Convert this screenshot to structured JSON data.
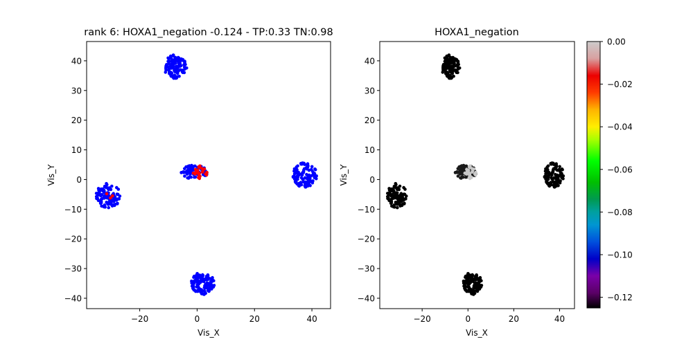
{
  "chart_data": [
    {
      "type": "scatter",
      "title": "rank 6: HOXA1_negation -0.124 - TP:0.33 TN:0.98",
      "xlabel": "Vis_X",
      "ylabel": "Vis_Y",
      "xlim": [
        -38.5,
        46.5
      ],
      "ylim": [
        -43.5,
        46.5
      ],
      "xticks": [
        -20,
        0,
        20,
        40
      ],
      "yticks": [
        -40,
        -30,
        -20,
        -10,
        0,
        10,
        20,
        30,
        40
      ],
      "clusters": [
        {
          "center": [
            -7.5,
            38
          ],
          "radius": [
            4.2,
            4.0
          ],
          "count": 110,
          "color": "#0000ff"
        },
        {
          "center": [
            -31,
            -5.5
          ],
          "radius": [
            4.2,
            4.2
          ],
          "count": 110,
          "color": "#0000ff"
        },
        {
          "center": [
            37.5,
            1.5
          ],
          "radius": [
            4.2,
            4.2
          ],
          "count": 110,
          "color": "#0000ff"
        },
        {
          "center": [
            2,
            -35
          ],
          "radius": [
            4.2,
            3.8
          ],
          "count": 110,
          "color": "#0000ff"
        },
        {
          "center": [
            -1,
            2.5
          ],
          "radius": [
            4.6,
            2.4
          ],
          "count": 70,
          "color": "#0000ff",
          "highlight_count": 28,
          "highlight_color": "#ff0000"
        }
      ]
    },
    {
      "type": "scatter",
      "title": "HOXA1_negation",
      "xlabel": "Vis_X",
      "ylabel": "Vis_Y",
      "xlim": [
        -38.5,
        46.5
      ],
      "ylim": [
        -43.5,
        46.5
      ],
      "xticks": [
        -20,
        0,
        20,
        40
      ],
      "yticks": [
        -40,
        -30,
        -20,
        -10,
        0,
        10,
        20,
        30,
        40
      ],
      "clusters": [
        {
          "center": [
            -7.5,
            38
          ],
          "radius": [
            4.2,
            4.0
          ],
          "count": 110,
          "color": "#000000"
        },
        {
          "center": [
            -31,
            -5.5
          ],
          "radius": [
            4.2,
            4.2
          ],
          "count": 110,
          "color": "#000000"
        },
        {
          "center": [
            37.5,
            1.5
          ],
          "radius": [
            4.2,
            4.2
          ],
          "count": 110,
          "color": "#000000"
        },
        {
          "center": [
            2,
            -35
          ],
          "radius": [
            4.2,
            3.8
          ],
          "count": 110,
          "color": "#000000"
        },
        {
          "center": [
            -1,
            2.5
          ],
          "radius": [
            4.6,
            2.4
          ],
          "count": 70,
          "color": "#1a1a1a",
          "highlight_count": 30,
          "highlight_color": "#c8c8c8"
        }
      ],
      "colorbar": {
        "min": -0.125,
        "max": 0.0,
        "ticks": [
          0.0,
          -0.02,
          -0.04,
          -0.06,
          -0.08,
          -0.1,
          -0.12
        ],
        "tick_labels": [
          "0.00",
          "−0.02",
          "−0.04",
          "−0.06",
          "−0.08",
          "−0.10",
          "−0.12"
        ],
        "colormap_stops": [
          {
            "v": -0.125,
            "c": "#000000"
          },
          {
            "v": -0.118,
            "c": "#5a0066"
          },
          {
            "v": -0.11,
            "c": "#7a00a8"
          },
          {
            "v": -0.102,
            "c": "#0000c8"
          },
          {
            "v": -0.094,
            "c": "#0050dd"
          },
          {
            "v": -0.086,
            "c": "#0096d2"
          },
          {
            "v": -0.08,
            "c": "#00a0a0"
          },
          {
            "v": -0.074,
            "c": "#009a50"
          },
          {
            "v": -0.066,
            "c": "#00bf00"
          },
          {
            "v": -0.056,
            "c": "#00ff00"
          },
          {
            "v": -0.046,
            "c": "#a8ff00"
          },
          {
            "v": -0.04,
            "c": "#ffee00"
          },
          {
            "v": -0.032,
            "c": "#ffb400"
          },
          {
            "v": -0.024,
            "c": "#ff3c00"
          },
          {
            "v": -0.016,
            "c": "#ec0000"
          },
          {
            "v": -0.008,
            "c": "#d8a0a0"
          },
          {
            "v": 0.0,
            "c": "#cccccc"
          }
        ]
      }
    }
  ]
}
